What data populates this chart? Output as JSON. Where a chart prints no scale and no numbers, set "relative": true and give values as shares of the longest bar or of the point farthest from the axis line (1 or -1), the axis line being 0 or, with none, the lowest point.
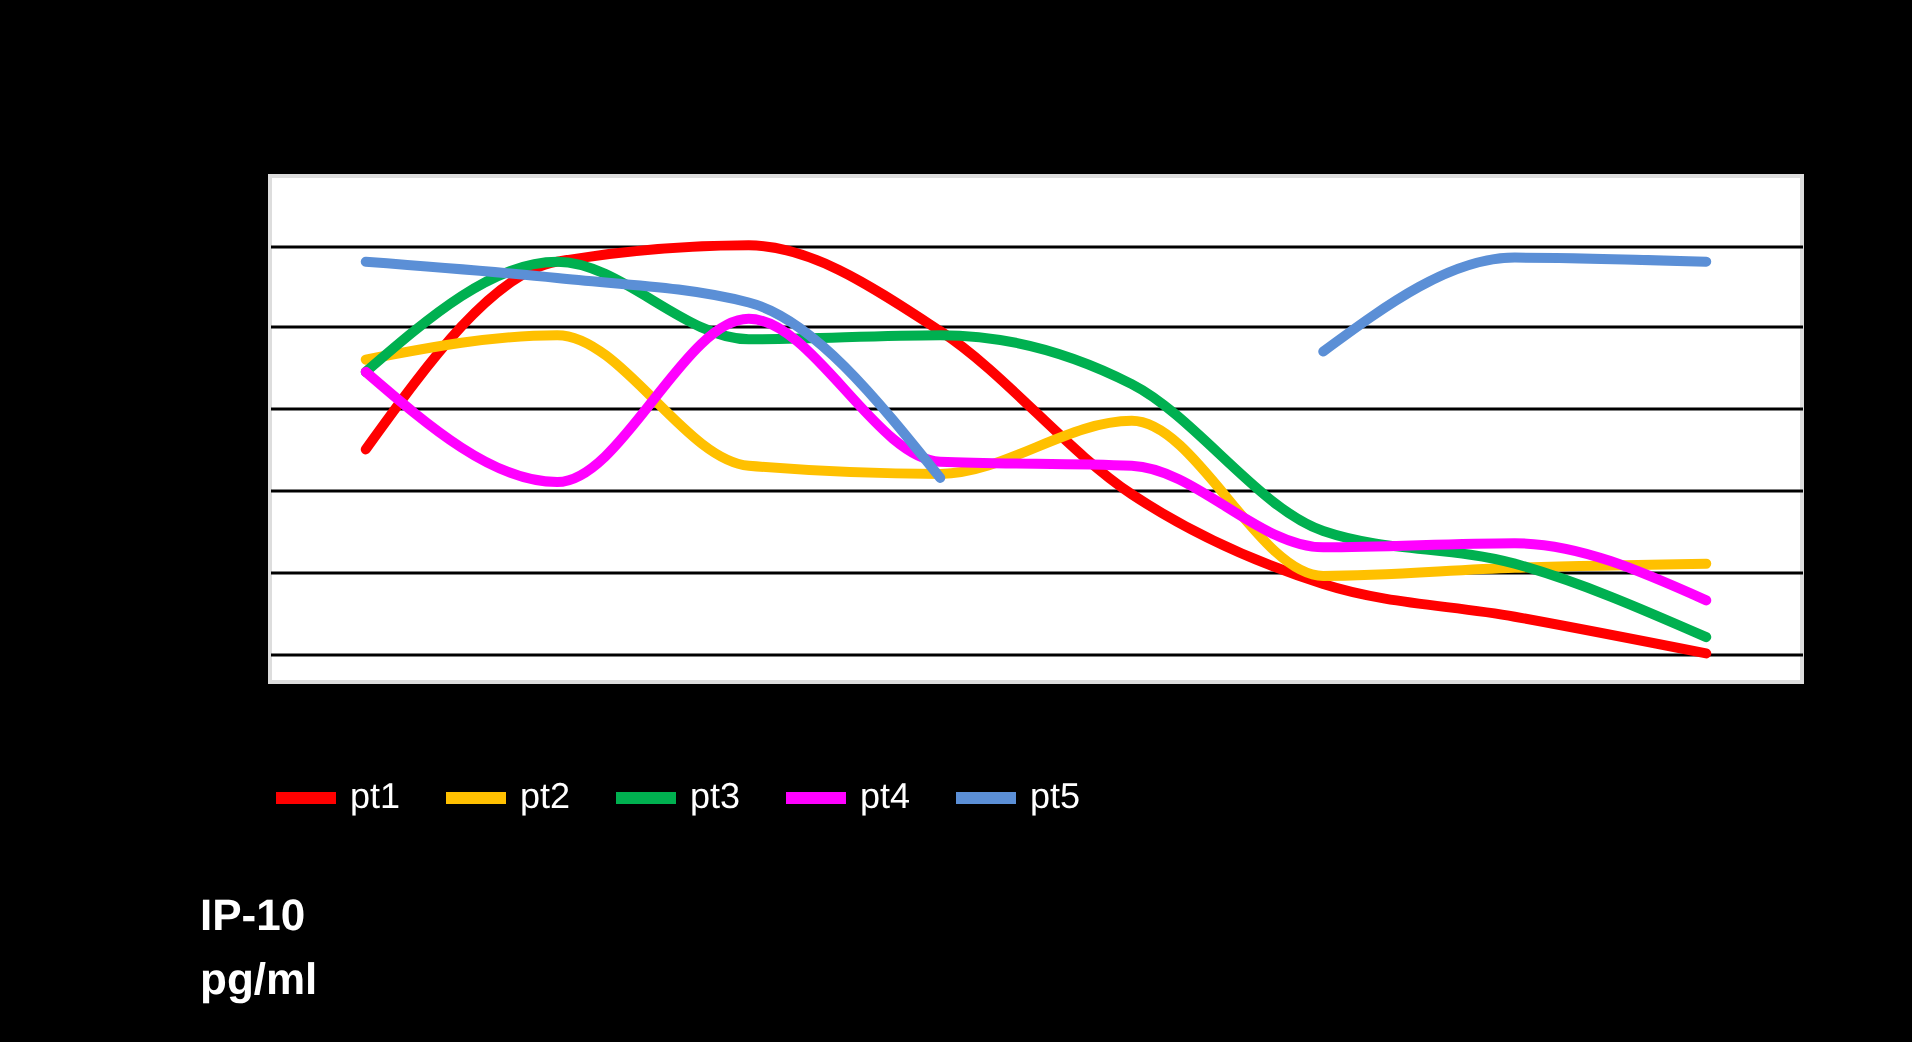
{
  "chart_data": {
    "type": "line",
    "relative": true,
    "annotations": [
      "IP-10 pg/ml"
    ],
    "grid": "y",
    "legend": "bottom",
    "line_style": "solid",
    "marker": "none",
    "categories": [
      null,
      null,
      null,
      null,
      null,
      null,
      null,
      null
    ],
    "series": [
      {
        "name": "pt1",
        "color": "#ff0000",
        "values": [
          0.5,
          0.96,
          1.0,
          0.79,
          0.39,
          0.17,
          0.09,
          0.0
        ]
      },
      {
        "name": "pt2",
        "color": "#ffc000",
        "values": [
          0.72,
          0.78,
          0.46,
          0.44,
          0.57,
          0.19,
          0.21,
          0.22
        ]
      },
      {
        "name": "pt3",
        "color": "#00b050",
        "values": [
          0.69,
          0.96,
          0.77,
          0.78,
          0.66,
          0.3,
          0.22,
          0.04
        ]
      },
      {
        "name": "pt4",
        "color": "#ff00ff",
        "values": [
          0.69,
          0.42,
          0.82,
          0.47,
          0.46,
          0.26,
          0.27,
          0.13
        ]
      },
      {
        "name": "pt5",
        "color": "#5b8fd6",
        "values": [
          0.96,
          0.92,
          0.86,
          0.43,
          null,
          0.74,
          0.97,
          0.96
        ]
      }
    ]
  }
}
